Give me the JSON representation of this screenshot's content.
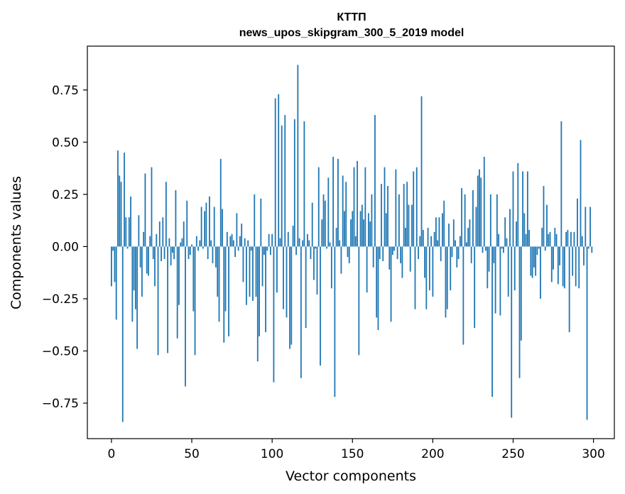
{
  "chart_data": {
    "type": "bar",
    "title": "КТТП",
    "subtitle": "news_upos_skipgram_300_5_2019 model",
    "xlabel": "Vector components",
    "ylabel": "Components values",
    "xlim": [
      -15,
      313
    ],
    "ylim": [
      -0.92,
      0.96
    ],
    "xticks": [
      0,
      50,
      100,
      150,
      200,
      250,
      300
    ],
    "yticks": [
      -0.75,
      -0.5,
      -0.25,
      0.0,
      0.25,
      0.5,
      0.75
    ],
    "xtick_labels": [
      "0",
      "50",
      "100",
      "150",
      "200",
      "250",
      "300"
    ],
    "ytick_labels": [
      "−0.75",
      "−0.50",
      "−0.25",
      "0.00",
      "0.25",
      "0.50",
      "0.75"
    ],
    "bar_color": "#1f77b4",
    "grid": false,
    "legend": "none",
    "x": [
      0,
      1,
      2,
      3,
      4,
      5,
      6,
      7,
      8,
      9,
      10,
      11,
      12,
      13,
      14,
      15,
      16,
      17,
      18,
      19,
      20,
      21,
      22,
      23,
      24,
      25,
      26,
      27,
      28,
      29,
      30,
      31,
      32,
      33,
      34,
      35,
      36,
      37,
      38,
      39,
      40,
      41,
      42,
      43,
      44,
      45,
      46,
      47,
      48,
      49,
      50,
      51,
      52,
      53,
      54,
      55,
      56,
      57,
      58,
      59,
      60,
      61,
      62,
      63,
      64,
      65,
      66,
      67,
      68,
      69,
      70,
      71,
      72,
      73,
      74,
      75,
      76,
      77,
      78,
      79,
      80,
      81,
      82,
      83,
      84,
      85,
      86,
      87,
      88,
      89,
      90,
      91,
      92,
      93,
      94,
      95,
      96,
      97,
      98,
      99,
      100,
      101,
      102,
      103,
      104,
      105,
      106,
      107,
      108,
      109,
      110,
      111,
      112,
      113,
      114,
      115,
      116,
      117,
      118,
      119,
      120,
      121,
      122,
      123,
      124,
      125,
      126,
      127,
      128,
      129,
      130,
      131,
      132,
      133,
      134,
      135,
      136,
      137,
      138,
      139,
      140,
      141,
      142,
      143,
      144,
      145,
      146,
      147,
      148,
      149,
      150,
      151,
      152,
      153,
      154,
      155,
      156,
      157,
      158,
      159,
      160,
      161,
      162,
      163,
      164,
      165,
      166,
      167,
      168,
      169,
      170,
      171,
      172,
      173,
      174,
      175,
      176,
      177,
      178,
      179,
      180,
      181,
      182,
      183,
      184,
      185,
      186,
      187,
      188,
      189,
      190,
      191,
      192,
      193,
      194,
      195,
      196,
      197,
      198,
      199,
      200,
      201,
      202,
      203,
      204,
      205,
      206,
      207,
      208,
      209,
      210,
      211,
      212,
      213,
      214,
      215,
      216,
      217,
      218,
      219,
      220,
      221,
      222,
      223,
      224,
      225,
      226,
      227,
      228,
      229,
      230,
      231,
      232,
      233,
      234,
      235,
      236,
      237,
      238,
      239,
      240,
      241,
      242,
      243,
      244,
      245,
      246,
      247,
      248,
      249,
      250,
      251,
      252,
      253,
      254,
      255,
      256,
      257,
      258,
      259,
      260,
      261,
      262,
      263,
      264,
      265,
      266,
      267,
      268,
      269,
      270,
      271,
      272,
      273,
      274,
      275,
      276,
      277,
      278,
      279,
      280,
      281,
      282,
      283,
      284,
      285,
      286,
      287,
      288,
      289,
      290,
      291,
      292,
      293,
      294,
      295,
      296,
      297,
      298,
      299
    ],
    "values": [
      -0.19,
      -0.02,
      -0.17,
      -0.35,
      0.46,
      0.34,
      0.31,
      -0.84,
      0.45,
      0.14,
      -0.01,
      0.14,
      0.24,
      -0.36,
      -0.21,
      -0.3,
      -0.49,
      0.15,
      -0.1,
      -0.24,
      0.07,
      0.35,
      -0.13,
      -0.14,
      0.05,
      0.38,
      -0.06,
      -0.19,
      0.06,
      -0.52,
      0.12,
      -0.07,
      0.14,
      -0.06,
      0.31,
      -0.51,
      0.04,
      -0.09,
      -0.03,
      -0.06,
      0.27,
      -0.44,
      -0.28,
      0.02,
      0.04,
      0.12,
      -0.67,
      0.22,
      -0.06,
      -0.04,
      0.01,
      -0.31,
      -0.52,
      0.05,
      -0.02,
      0.03,
      0.19,
      -0.01,
      0.17,
      0.21,
      -0.06,
      0.24,
      0.03,
      -0.08,
      0.19,
      -0.1,
      -0.24,
      -0.36,
      0.42,
      0.18,
      -0.46,
      -0.31,
      0.07,
      -0.43,
      0.05,
      0.06,
      0.03,
      -0.05,
      0.16,
      -0.02,
      0.05,
      0.11,
      -0.17,
      0.04,
      -0.28,
      0.03,
      -0.24,
      -0.02,
      -0.26,
      0.25,
      -0.24,
      -0.55,
      -0.43,
      0.23,
      -0.19,
      -0.04,
      -0.41,
      -0.02,
      0.06,
      -0.04,
      0.06,
      -0.65,
      0.71,
      -0.22,
      0.73,
      0.04,
      0.58,
      -0.3,
      0.63,
      -0.34,
      0.07,
      -0.49,
      -0.47,
      0.1,
      0.61,
      -0.04,
      0.87,
      0.04,
      -0.63,
      0.03,
      0.6,
      -0.39,
      0.06,
      0.03,
      -0.06,
      0.21,
      -0.16,
      -0.01,
      -0.23,
      0.38,
      -0.57,
      0.13,
      0.25,
      0.22,
      -0.01,
      0.33,
      0.02,
      -0.2,
      0.43,
      -0.72,
      0.09,
      0.42,
      0.03,
      -0.13,
      0.34,
      0.17,
      0.31,
      -0.05,
      -0.08,
      0.13,
      0.17,
      0.38,
      0.05,
      0.41,
      -0.52,
      0.17,
      0.2,
      0.13,
      0.38,
      -0.22,
      0.16,
      0.12,
      0.25,
      -0.1,
      0.63,
      -0.34,
      -0.4,
      -0.06,
      0.3,
      -0.07,
      0.38,
      0.16,
      0.29,
      -0.11,
      -0.36,
      -0.04,
      -0.02,
      0.37,
      -0.06,
      0.25,
      -0.08,
      -0.15,
      0.3,
      0.09,
      0.31,
      0.2,
      -0.12,
      0.2,
      0.36,
      -0.3,
      0.38,
      -0.06,
      0.05,
      0.72,
      0.08,
      -0.15,
      -0.3,
      0.09,
      -0.21,
      0.05,
      -0.24,
      0.07,
      0.14,
      0.03,
      0.14,
      -0.07,
      0.16,
      0.22,
      -0.34,
      -0.3,
      0.11,
      -0.21,
      -0.05,
      0.13,
      0.03,
      -0.1,
      -0.06,
      0.05,
      0.28,
      -0.47,
      0.25,
      0.02,
      0.09,
      0.13,
      -0.08,
      0.27,
      -0.39,
      0.19,
      0.34,
      0.37,
      0.33,
      -0.03,
      0.43,
      -0.02,
      -0.2,
      -0.12,
      0.25,
      -0.72,
      -0.08,
      -0.32,
      0.25,
      0.06,
      -0.33,
      -0.01,
      -0.03,
      0.14,
      0.04,
      -0.24,
      0.18,
      -0.82,
      0.36,
      -0.21,
      0.12,
      0.4,
      -0.63,
      -0.45,
      0.36,
      0.16,
      0.06,
      0.36,
      0.08,
      -0.14,
      -0.15,
      -0.1,
      -0.14,
      -0.04,
      -0.01,
      -0.25,
      0.09,
      0.29,
      -0.02,
      0.2,
      0.06,
      0.07,
      -0.17,
      -0.11,
      0.09,
      0.06,
      -0.18,
      -0.09,
      0.6,
      -0.19,
      -0.2,
      0.07,
      0.08,
      -0.41,
      0.07,
      -0.14,
      0.07,
      -0.19,
      0.23,
      -0.2,
      0.51,
      0.05,
      -0.09,
      0.19,
      -0.83,
      -0.01,
      0.19,
      -0.03
    ]
  }
}
